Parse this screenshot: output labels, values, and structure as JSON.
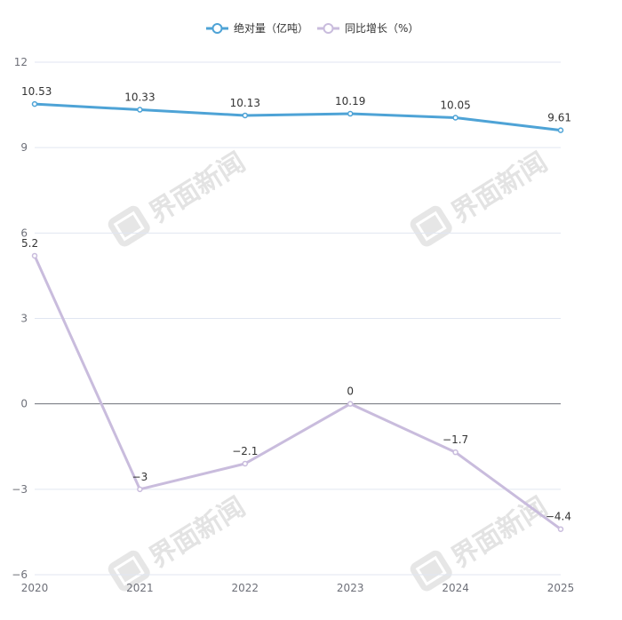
{
  "chart_data": {
    "type": "line",
    "categories": [
      "2020",
      "2021",
      "2022",
      "2023",
      "2024",
      "2025"
    ],
    "series": [
      {
        "name": "绝对量（亿吨）",
        "values": [
          10.53,
          10.33,
          10.13,
          10.19,
          10.05,
          9.61
        ],
        "color": "#4ea3d6"
      },
      {
        "name": "同比增长（%）",
        "values": [
          5.2,
          -3,
          -2.1,
          0,
          -1.7,
          -4.4
        ],
        "color": "#c9bcdd"
      }
    ],
    "data_labels": [
      [
        "10.53",
        "10.33",
        "10.13",
        "10.19",
        "10.05",
        "9.61"
      ],
      [
        "5.2",
        "−3",
        "−2.1",
        "0",
        "−1.7",
        "−4.4"
      ]
    ],
    "ylim": [
      -6,
      12
    ],
    "yticks": [
      12,
      9,
      6,
      3,
      0,
      -3,
      -6
    ],
    "ytick_labels": [
      "12",
      "9",
      "6",
      "3",
      "0",
      "−3",
      "−6"
    ],
    "grid": true,
    "legend_position": "top-center",
    "xlabel": "",
    "ylabel": ""
  },
  "watermark": {
    "text": "界面新闻",
    "icon": "jiemian-logo-icon"
  }
}
